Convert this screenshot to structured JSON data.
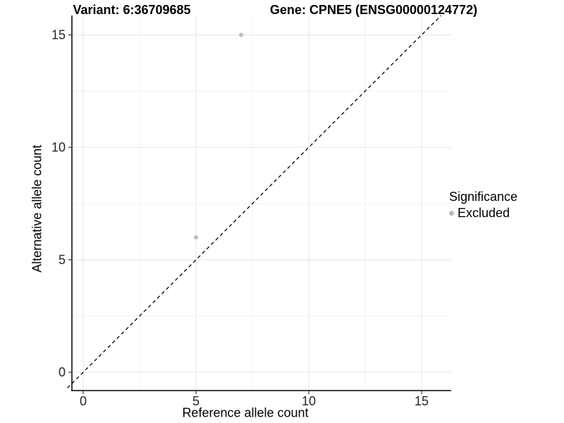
{
  "header": {
    "variant_title": "Variant: 6:36709685",
    "gene_title": "Gene: CPNE5 (ENSG00000124772)"
  },
  "legend": {
    "title": "Significance",
    "items": [
      {
        "label": "Excluded",
        "color": "#bdbdbd"
      }
    ]
  },
  "chart_data": {
    "type": "scatter",
    "title": "Variant: 6:36709685 | Gene: CPNE5 (ENSG00000124772)",
    "xlabel": "Reference allele count",
    "ylabel": "Alternative allele count",
    "points": [
      {
        "x": 7,
        "y": 15,
        "significance": "Excluded"
      },
      {
        "x": 5,
        "y": 6,
        "significance": "Excluded"
      }
    ],
    "reference_line": {
      "slope": 1,
      "intercept": 0,
      "style": "dashed",
      "color": "#000000"
    },
    "x_ticks": [
      0,
      5,
      10,
      15
    ],
    "y_ticks": [
      0,
      5,
      10,
      15
    ],
    "x_minor_ticks": [
      2.5,
      7.5,
      12.5
    ],
    "y_minor_ticks": [
      2.5,
      7.5,
      12.5
    ],
    "xlim": [
      -0.5,
      16.3125
    ],
    "ylim": [
      -0.815,
      15.862
    ],
    "grid": true,
    "legend_position": "right",
    "point_radius": 3,
    "colors": {
      "background": "#ffffff",
      "grid_major": "#e6e6e6",
      "grid_minor": "#f2f2f2",
      "axis_line": "#000000",
      "tick_mark": "#333333",
      "tick_label": "#262626",
      "point": "#bdbdbd"
    }
  }
}
